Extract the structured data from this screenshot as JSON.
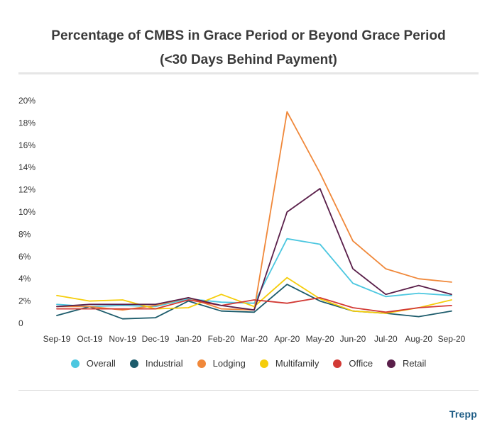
{
  "chart_data": {
    "type": "line",
    "title_line1": "Percentage of CMBS in Grace Period or Beyond Grace Period",
    "title_line2": "(<30 Days Behind Payment)",
    "categories": [
      "Sep-19",
      "Oct-19",
      "Nov-19",
      "Dec-19",
      "Jan-20",
      "Feb-20",
      "Mar-20",
      "Apr-20",
      "May-20",
      "Jun-20",
      "Jul-20",
      "Aug-20",
      "Sep-20"
    ],
    "ylim": [
      0,
      20
    ],
    "y_ticks": [
      {
        "value": 0,
        "label": "0"
      },
      {
        "value": 2,
        "label": "2%"
      },
      {
        "value": 4,
        "label": "4%"
      },
      {
        "value": 6,
        "label": "6%"
      },
      {
        "value": 8,
        "label": "8%"
      },
      {
        "value": 10,
        "label": "10%"
      },
      {
        "value": 12,
        "label": "12%"
      },
      {
        "value": 14,
        "label": "14%"
      },
      {
        "value": 16,
        "label": "16%"
      },
      {
        "value": 18,
        "label": "18%"
      },
      {
        "value": 20,
        "label": "20%"
      }
    ],
    "grid": false,
    "legend_position": "bottom",
    "series": [
      {
        "name": "Overall",
        "color": "#4cc7e0",
        "values": [
          1.7,
          1.5,
          1.6,
          1.5,
          2.2,
          1.9,
          1.8,
          7.6,
          7.1,
          3.6,
          2.4,
          2.7,
          2.5
        ]
      },
      {
        "name": "Industrial",
        "color": "#1c5b6b",
        "values": [
          0.7,
          1.5,
          0.4,
          0.5,
          2.0,
          1.1,
          1.0,
          3.5,
          2.0,
          1.1,
          0.9,
          0.6,
          1.1
        ]
      },
      {
        "name": "Lodging",
        "color": "#f0883a",
        "values": [
          1.5,
          1.5,
          1.2,
          1.6,
          2.3,
          1.3,
          1.2,
          19.0,
          13.5,
          7.4,
          4.9,
          4.0,
          3.7
        ]
      },
      {
        "name": "Multifamily",
        "color": "#f5cd0a",
        "values": [
          2.5,
          2.0,
          2.1,
          1.3,
          1.4,
          2.6,
          1.5,
          4.1,
          2.2,
          1.1,
          0.9,
          1.4,
          2.1
        ]
      },
      {
        "name": "Office",
        "color": "#d23a35",
        "values": [
          1.3,
          1.3,
          1.3,
          1.3,
          2.1,
          1.6,
          2.1,
          1.8,
          2.3,
          1.4,
          1.0,
          1.4,
          1.6
        ]
      },
      {
        "name": "Retail",
        "color": "#5a1f4a",
        "values": [
          1.5,
          1.7,
          1.7,
          1.7,
          2.3,
          1.6,
          1.2,
          10.0,
          12.1,
          4.9,
          2.6,
          3.4,
          2.6
        ]
      }
    ]
  },
  "brand": "Trepp"
}
